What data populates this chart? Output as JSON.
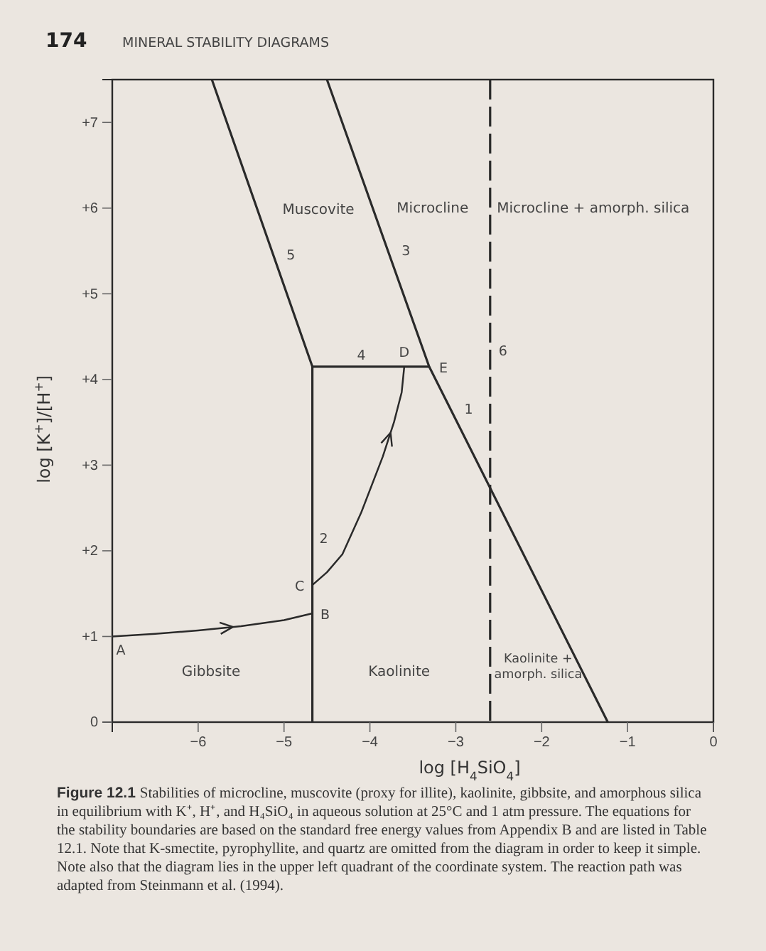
{
  "chart_data": {
    "type": "line",
    "xlabel": "log [H$_{4}$SiO$_{4}$]",
    "ylabel": "log [K$^{+}$]/[H$^{+}$]",
    "xlim": [
      -7,
      0
    ],
    "ylim": [
      0,
      7.5
    ],
    "xticks": [
      {
        "value": -6,
        "label": "−6"
      },
      {
        "value": -5,
        "label": "−5"
      },
      {
        "value": -4,
        "label": "−4"
      },
      {
        "value": -3,
        "label": "−3"
      },
      {
        "value": -2,
        "label": "−2"
      },
      {
        "value": -1,
        "label": "−1"
      },
      0
    ],
    "yticks": [
      0,
      {
        "value": 1,
        "label": "+1"
      },
      {
        "value": 2,
        "label": "+2"
      },
      {
        "value": 3,
        "label": "+3"
      },
      {
        "value": 4,
        "label": "+4"
      },
      {
        "value": 5,
        "label": "+5"
      },
      {
        "value": 6,
        "label": "+6"
      },
      {
        "value": 7,
        "label": "+7"
      }
    ],
    "grid": false,
    "series": [
      {
        "color": "#2a2a2a",
        "x": [
          -5.84,
          -4.67,
          -4.67
        ],
        "values": [
          7.5,
          4.15,
          0
        ]
      },
      {
        "color": "#2a2a2a",
        "x": [
          -4.67,
          -3.31
        ],
        "values": [
          4.15,
          4.15
        ]
      },
      {
        "color": "#2a2a2a",
        "x": [
          -4.5,
          -3.31,
          -1.23
        ],
        "values": [
          7.5,
          4.15,
          0
        ]
      },
      {
        "color": "#2a2a2a",
        "x": [
          -2.6,
          -2.6
        ],
        "values": [
          7.5,
          0
        ],
        "line_style": "dashed"
      },
      {
        "color": "#2a2a2a",
        "x": [
          -7,
          -6.5,
          -6,
          -5.5,
          -5,
          -4.67
        ],
        "values": [
          1.0,
          1.03,
          1.07,
          1.12,
          1.19,
          1.27
        ]
      },
      {
        "color": "#2a2a2a",
        "x": [
          -4.67,
          -4.5,
          -4.32,
          -4.1,
          -3.85,
          -3.72,
          -3.63,
          -3.6
        ],
        "values": [
          1.6,
          1.75,
          1.96,
          2.45,
          3.1,
          3.5,
          3.85,
          4.15
        ]
      }
    ],
    "annotations": [
      "174",
      "MINERAL STABILITY DIAGRAMS",
      "Muscovite",
      "Microcline",
      "Microcline + amorph. silica",
      "Gibbsite",
      "Kaolinite",
      "Kaolinite +\namorph. silica",
      {
        "text": "5",
        "x": -5.02,
        "y": 5.4
      },
      {
        "text": "3",
        "x": -3.68,
        "y": 5.45
      },
      {
        "text": "4",
        "x": -4.1,
        "y": 4.15
      },
      {
        "text": "6",
        "x": -2.6,
        "y": 4.35
      },
      {
        "text": "1",
        "x": -2.95,
        "y": 3.6
      },
      {
        "text": "2",
        "x": -4.67,
        "y": 2.16
      },
      {
        "text": "A",
        "x": -7,
        "y": 1.0
      },
      {
        "text": "B",
        "x": -4.67,
        "y": 1.27
      },
      {
        "text": "C",
        "x": -4.67,
        "y": 1.6
      },
      {
        "text": "D",
        "x": -3.6,
        "y": 4.15
      },
      {
        "text": "E",
        "x": -3.31,
        "y": 4.15
      },
      "Figure 12.1 Stabilities of microcline, muscovite (proxy for illite), kaolinite, gibbsite, and amorphous silica in equilibrium with K⁺, H⁺, and H₄SiO₄ in aqueous solution at 25°C and 1 atm pressure. The equations for the stability boundaries are based on the standard free energy values from Appendix B and are listed in Table 12.1. Note that K-smectite, pyrophyllite, and quartz are omitted from the diagram in order to keep it simple. Note also that the diagram lies in the upper left quadrant of the coordinate system. The reaction path was adapted from Steinmann et al. (1994)."
    ]
  }
}
